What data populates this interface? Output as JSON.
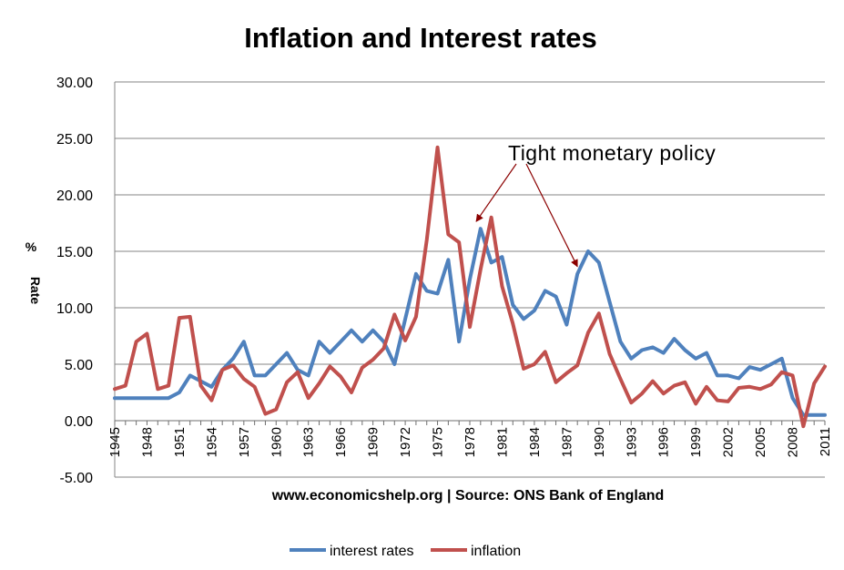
{
  "chart_data": {
    "type": "line",
    "title": "Inflation and Interest rates",
    "xlabel": "www.economicshelp.org | Source: ONS Bank of England",
    "ylabel": "% Rate",
    "ylim": [
      -5,
      30
    ],
    "y_ticks": [
      "-5.00",
      "0.00",
      "5.00",
      "10.00",
      "15.00",
      "20.00",
      "25.00",
      "30.00"
    ],
    "x_tick_labels": [
      "1945",
      "1948",
      "1951",
      "1954",
      "1957",
      "1960",
      "1963",
      "1966",
      "1969",
      "1972",
      "1975",
      "1978",
      "1981",
      "1984",
      "1987",
      "1990",
      "1993",
      "1996",
      "1999",
      "2002",
      "2005",
      "2008",
      "2011"
    ],
    "grid": true,
    "legend_placement": "bottom",
    "x": [
      1945,
      1946,
      1947,
      1948,
      1949,
      1950,
      1951,
      1952,
      1953,
      1954,
      1955,
      1956,
      1957,
      1958,
      1959,
      1960,
      1961,
      1962,
      1963,
      1964,
      1965,
      1966,
      1967,
      1968,
      1969,
      1970,
      1971,
      1972,
      1973,
      1974,
      1975,
      1976,
      1977,
      1978,
      1979,
      1980,
      1981,
      1982,
      1983,
      1984,
      1985,
      1986,
      1987,
      1988,
      1989,
      1990,
      1991,
      1992,
      1993,
      1994,
      1995,
      1996,
      1997,
      1998,
      1999,
      2000,
      2001,
      2002,
      2003,
      2004,
      2005,
      2006,
      2007,
      2008,
      2009,
      2010,
      2011
    ],
    "series": [
      {
        "name": "interest rates",
        "color": "#4f81bd",
        "values": [
          2,
          2,
          2,
          2,
          2,
          2,
          2.5,
          4,
          3.5,
          3,
          4.5,
          5.5,
          7,
          4,
          4,
          5,
          6,
          4.5,
          4,
          7,
          6,
          7,
          8,
          7,
          8,
          7,
          5,
          9,
          13,
          11.5,
          11.25,
          14.25,
          7,
          12.5,
          17,
          14,
          14.5,
          10.25,
          9,
          9.75,
          11.5,
          11,
          8.5,
          13,
          15,
          14,
          10.5,
          7,
          5.5,
          6.25,
          6.5,
          6,
          7.25,
          6.25,
          5.5,
          6,
          4,
          4,
          3.75,
          4.75,
          4.5,
          5,
          5.5,
          2,
          0.5,
          0.5,
          0.5
        ]
      },
      {
        "name": "inflation",
        "color": "#c0504d",
        "values": [
          2.8,
          3.1,
          7,
          7.7,
          2.8,
          3.1,
          9.1,
          9.2,
          3.1,
          1.8,
          4.5,
          4.9,
          3.7,
          3,
          0.6,
          1,
          3.4,
          4.3,
          2,
          3.3,
          4.8,
          3.9,
          2.5,
          4.7,
          5.4,
          6.4,
          9.4,
          7.1,
          9.2,
          16,
          24.2,
          16.5,
          15.8,
          8.3,
          13.4,
          18,
          11.9,
          8.6,
          4.6,
          5,
          6.1,
          3.4,
          4.2,
          4.9,
          7.8,
          9.5,
          5.9,
          3.7,
          1.6,
          2.4,
          3.5,
          2.4,
          3.1,
          3.4,
          1.5,
          3,
          1.8,
          1.7,
          2.9,
          3,
          2.8,
          3.2,
          4.3,
          4,
          -0.5,
          3.3,
          4.8
        ]
      }
    ],
    "annotations": [
      {
        "text": "Tight monetary policy",
        "targets": [
          1978.6,
          1988
        ]
      }
    ]
  }
}
